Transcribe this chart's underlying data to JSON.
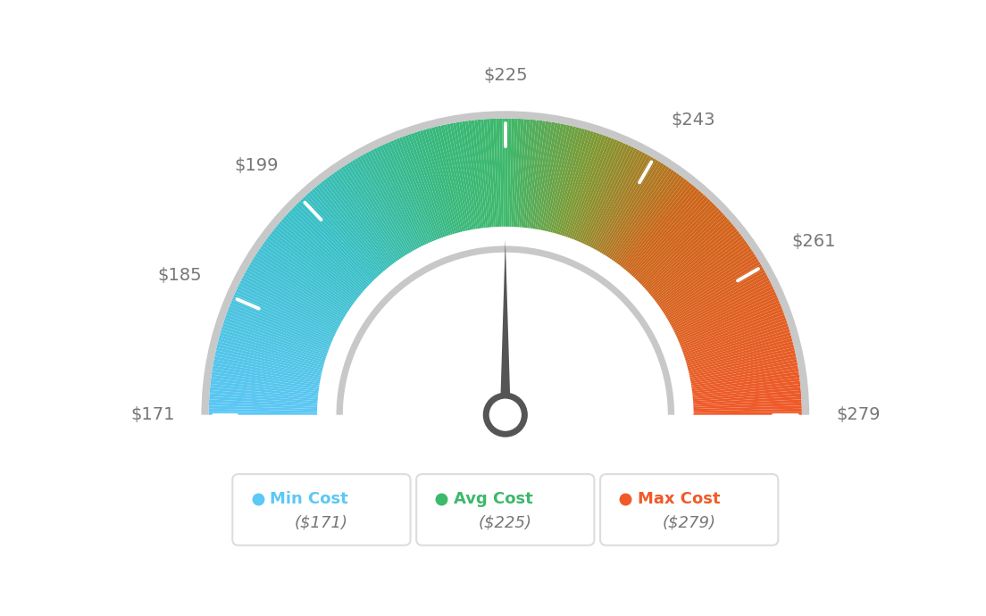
{
  "min_val": 171,
  "max_val": 279,
  "avg_val": 225,
  "needle_val": 225,
  "tick_labels": [
    "$171",
    "$185",
    "$199",
    "$225",
    "$243",
    "$261",
    "$279"
  ],
  "tick_values": [
    171,
    185,
    199,
    225,
    243,
    261,
    279
  ],
  "min_cost_label": "Min Cost",
  "avg_cost_label": "Avg Cost",
  "max_cost_label": "Max Cost",
  "min_cost_val": "($171)",
  "avg_cost_val": "($225)",
  "max_cost_val": "($279)",
  "min_color": "#5BC8F5",
  "avg_color": "#3CB96A",
  "max_color": "#F05A28",
  "needle_color": "#555555",
  "bg_color": "#FFFFFF",
  "label_color": "#777777"
}
